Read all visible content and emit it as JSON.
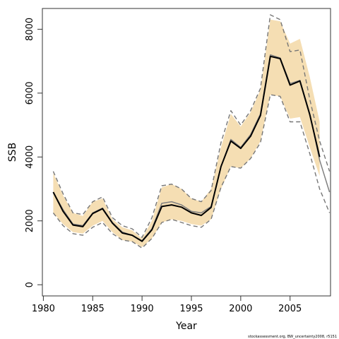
{
  "chart_data": {
    "type": "line",
    "xlabel": "Year",
    "ylabel": "SSB",
    "xlim": [
      1979.9,
      2009.1
    ],
    "ylim": [
      -350,
      8650
    ],
    "xticks": [
      1980,
      1985,
      1990,
      1995,
      2000,
      2005
    ],
    "yticks": [
      0,
      2000,
      4000,
      6000,
      8000
    ],
    "grid": false,
    "legend": "none",
    "colors": {
      "band": "#f5deb3",
      "main": "#000000",
      "secondary": "#808080",
      "dashed": "#777777",
      "axis": "#333333"
    },
    "band": {
      "x": [
        1981,
        1982,
        1983,
        1984,
        1985,
        1986,
        1987,
        1988,
        1989,
        1990,
        1991,
        1992,
        1993,
        1994,
        1995,
        1996,
        1997,
        1998,
        1999,
        2000,
        2001,
        2002,
        2003,
        2004,
        2005,
        2006,
        2007,
        2008
      ],
      "lower": [
        2250,
        1900,
        1650,
        1600,
        1850,
        2000,
        1650,
        1400,
        1350,
        1180,
        1450,
        1950,
        2050,
        2000,
        1900,
        1850,
        2050,
        3000,
        3700,
        3650,
        3950,
        4500,
        5950,
        5900,
        5200,
        5250,
        4300,
        3400
      ],
      "upper": [
        3500,
        2800,
        2250,
        2150,
        2600,
        2700,
        2050,
        1800,
        1700,
        1450,
        2000,
        3050,
        3150,
        3000,
        2700,
        2600,
        3000,
        4300,
        5350,
        4950,
        5400,
        6100,
        8300,
        8250,
        7550,
        7700,
        6500,
        5100
      ]
    },
    "series": [
      {
        "style": "solid-secondary",
        "x": [
          1981,
          1982,
          1983,
          1984,
          1985,
          1986,
          1987,
          1988,
          1989,
          1990,
          1991,
          1992,
          1993,
          1994,
          1995,
          1996,
          1997,
          1998,
          1999,
          2000,
          2001,
          2002,
          2003,
          2004,
          2005,
          2006,
          2007,
          2008,
          2009
        ],
        "values": [
          2900,
          2350,
          1900,
          1850,
          2250,
          2400,
          1950,
          1650,
          1550,
          1380,
          1750,
          2550,
          2600,
          2500,
          2300,
          2250,
          2450,
          3700,
          4550,
          4300,
          4700,
          5350,
          7200,
          7100,
          6300,
          6400,
          5350,
          3900,
          2900
        ]
      },
      {
        "style": "solid-main",
        "x": [
          1981,
          1982,
          1983,
          1984,
          1985,
          1986,
          1987,
          1988,
          1989,
          1990,
          1991,
          1992,
          1993,
          1994,
          1995,
          1996,
          1997,
          1998,
          1999,
          2000,
          2001,
          2002,
          2003,
          2004,
          2005,
          2006,
          2007,
          2008
        ],
        "values": [
          2900,
          2300,
          1870,
          1820,
          2230,
          2380,
          1930,
          1620,
          1550,
          1360,
          1720,
          2450,
          2500,
          2430,
          2250,
          2170,
          2420,
          3700,
          4500,
          4270,
          4650,
          5300,
          7150,
          7080,
          6250,
          6380,
          5320,
          4000
        ]
      },
      {
        "style": "dashed-upper",
        "x": [
          1981,
          1982,
          1983,
          1984,
          1985,
          1986,
          1987,
          1988,
          1989,
          1990,
          1991,
          1992,
          1993,
          1994,
          1995,
          1996,
          1997,
          1998,
          1999,
          2000,
          2001,
          2002,
          2003,
          2004,
          2005,
          2006,
          2007,
          2008,
          2009
        ],
        "values": [
          3550,
          2850,
          2250,
          2200,
          2600,
          2750,
          2100,
          1850,
          1750,
          1480,
          2100,
          3100,
          3150,
          3000,
          2700,
          2600,
          2950,
          4450,
          5450,
          5000,
          5450,
          6150,
          8450,
          8300,
          7300,
          7350,
          5800,
          4500,
          3550
        ]
      },
      {
        "style": "dashed-lower",
        "x": [
          1981,
          1982,
          1983,
          1984,
          1985,
          1986,
          1987,
          1988,
          1989,
          1990,
          1991,
          1992,
          1993,
          1994,
          1995,
          1996,
          1997,
          1998,
          1999,
          2000,
          2001,
          2002,
          2003,
          2004,
          2005,
          2006,
          2007,
          2008,
          2009
        ],
        "values": [
          2250,
          1850,
          1600,
          1550,
          1800,
          1950,
          1600,
          1400,
          1350,
          1150,
          1450,
          1950,
          2050,
          1950,
          1850,
          1800,
          2050,
          3050,
          3700,
          3650,
          3950,
          4450,
          5950,
          5900,
          5100,
          5100,
          4100,
          3000,
          2250
        ]
      }
    ]
  },
  "footnote": "stockassessment.org, BW_uncertainty2008, r5151"
}
